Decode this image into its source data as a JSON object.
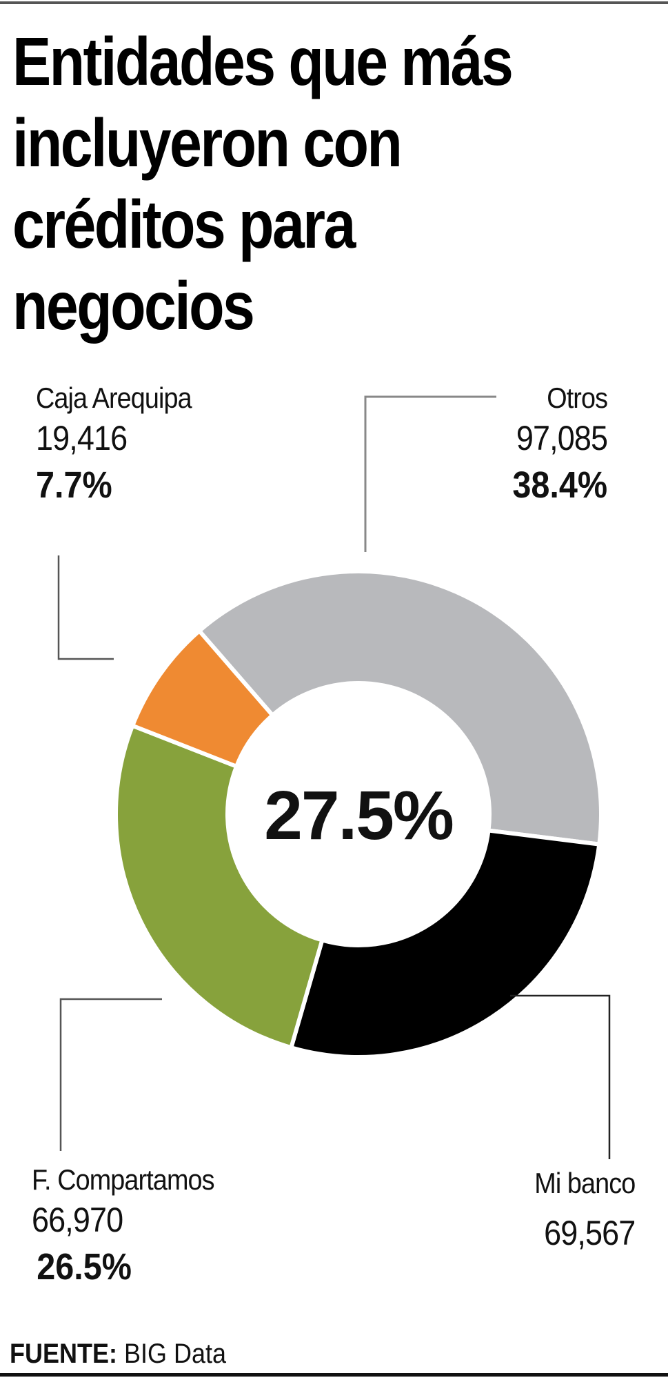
{
  "header": {
    "title_lines": [
      "Entidades que más",
      "incluyeron con",
      "créditos para",
      "negocios"
    ]
  },
  "labels": {
    "caja_arequipa": {
      "name": "Caja Arequipa",
      "value": "19,416",
      "pct": "7.7%"
    },
    "otros": {
      "name": "Otros",
      "value": "97,085",
      "pct": "38.4%"
    },
    "compartamos": {
      "name": "F. Compartamos",
      "value": "66,970",
      "pct": "26.5%"
    },
    "mibanco": {
      "name": "Mi banco",
      "value": "69,567"
    }
  },
  "center_label": "27.5%",
  "footer": {
    "source_label": "FUENTE:",
    "source_value": "BIG Data"
  },
  "colors": {
    "otros": "#b8b9bc",
    "mibanco": "#000000",
    "compartamos": "#87a23c",
    "caja_arequipa": "#ef8a32",
    "leader_gray": "#888888",
    "leader_dark": "#222222"
  },
  "chart_data": {
    "type": "pie",
    "subtype": "donut",
    "title": "Entidades que más incluyeron con créditos para negocios",
    "categories": [
      "Otros",
      "Mi banco",
      "F. Compartamos",
      "Caja Arequipa"
    ],
    "values": [
      97085,
      69567,
      66970,
      19416
    ],
    "percentages": [
      38.4,
      27.5,
      26.5,
      7.7
    ],
    "center_annotation": "27.5%",
    "colors": [
      "#b8b9bc",
      "#000000",
      "#87a23c",
      "#ef8a32"
    ],
    "source": "FUENTE: BIG Data",
    "legend": "callout labels with leader lines"
  }
}
